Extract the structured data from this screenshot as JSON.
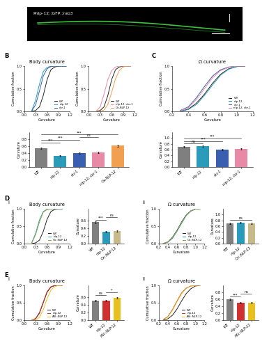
{
  "chart_data": [
    {
      "type": "image",
      "panel": "A",
      "annotation": "Pnlp-12::GFP::rab3"
    },
    {
      "type": "line",
      "panel": "B",
      "title": "Body curvature",
      "xlabel": "Curvature",
      "ylabel": "Cumulative fraction",
      "x": [
        0.2,
        0.3,
        0.4,
        0.5,
        0.6,
        0.7,
        0.8,
        0.9,
        1.0,
        1.1
      ],
      "xlim": [
        0.0,
        1.2
      ],
      "xticks": [
        0.0,
        0.3,
        0.6,
        0.9,
        1.2
      ],
      "ylim": [
        0.0,
        1.0
      ],
      "yticks": [
        0.0,
        0.5,
        1.0
      ],
      "legend": "lower right",
      "series": [
        {
          "name": "WT",
          "color": "#222222",
          "values": [
            0.0,
            0.02,
            0.1,
            0.35,
            0.7,
            0.92,
            0.98,
            1.0,
            1.0,
            1.0
          ]
        },
        {
          "name": "nlp-12",
          "color": "#2a9bb8",
          "values": [
            0.02,
            0.25,
            0.6,
            0.88,
            0.97,
            1.0,
            1.0,
            1.0,
            1.0,
            1.0
          ]
        },
        {
          "name": "ckr-1",
          "color": "#3a5fb0",
          "values": [
            0.01,
            0.15,
            0.45,
            0.78,
            0.94,
            0.99,
            1.0,
            1.0,
            1.0,
            1.0
          ]
        }
      ]
    },
    {
      "type": "line",
      "xlabel": "Curvature",
      "ylabel": "Cumulative fraction",
      "x": [
        0.2,
        0.3,
        0.4,
        0.5,
        0.6,
        0.7,
        0.8,
        0.9,
        1.0,
        1.1
      ],
      "xlim": [
        0.0,
        1.2
      ],
      "xticks": [
        0.0,
        0.3,
        0.6,
        0.9,
        1.2
      ],
      "ylim": [
        0.0,
        1.0
      ],
      "yticks": [
        0.0,
        0.5,
        1.0
      ],
      "legend": "lower right",
      "series": [
        {
          "name": "WT",
          "color": "#222222",
          "values": [
            0.0,
            0.02,
            0.1,
            0.35,
            0.7,
            0.92,
            0.98,
            1.0,
            1.0,
            1.0
          ]
        },
        {
          "name": "nlp-12; ckr-1",
          "color": "#e88aa6",
          "values": [
            0.01,
            0.1,
            0.38,
            0.7,
            0.9,
            0.98,
            1.0,
            1.0,
            1.0,
            1.0
          ]
        },
        {
          "name": "Ox-NLP-12",
          "color": "#f0a050",
          "values": [
            0.0,
            0.0,
            0.03,
            0.15,
            0.42,
            0.72,
            0.9,
            0.98,
            1.0,
            1.0
          ]
        }
      ]
    },
    {
      "type": "bar",
      "ylabel": "Curvature",
      "categories": [
        "WT",
        "nlp-12",
        "ckr-1",
        "nlp-12; ckr-1",
        "Ox-NLP-12"
      ],
      "values": [
        0.55,
        0.33,
        0.4,
        0.43,
        0.62
      ],
      "errors": [
        0.02,
        0.02,
        0.02,
        0.02,
        0.03
      ],
      "colors": [
        "#7f7f7f",
        "#2a9bb8",
        "#3a5fb0",
        "#e88aa6",
        "#f0a050"
      ],
      "ylim": [
        0.0,
        1.0
      ],
      "yticks": [
        0.0,
        0.2,
        0.4,
        0.6,
        0.8
      ],
      "significance": [
        {
          "text": "***",
          "from": "WT",
          "to": "nlp-12"
        },
        {
          "text": "***",
          "from": "WT",
          "to": "ckr-1"
        },
        {
          "text": "ns",
          "from": "ckr-1",
          "to": "nlp-12; ckr-1"
        },
        {
          "text": "***",
          "from": "WT",
          "to": "Ox-NLP-12"
        }
      ]
    },
    {
      "type": "line",
      "panel": "C",
      "title": "Ω curvature",
      "xlabel": "Curvature",
      "ylabel": "Cumulative fraction",
      "x": [
        0.3,
        0.4,
        0.5,
        0.6,
        0.7,
        0.8,
        0.9,
        1.0,
        1.1
      ],
      "xlim": [
        0.2,
        1.2
      ],
      "xticks": [
        0.2,
        0.4,
        0.6,
        0.8,
        1.0,
        1.2
      ],
      "ylim": [
        0.0,
        1.0
      ],
      "yticks": [
        0.0,
        0.5,
        1.0
      ],
      "legend": "lower right",
      "series": [
        {
          "name": "WT",
          "color": "#222222",
          "values": [
            0.0,
            0.05,
            0.18,
            0.38,
            0.62,
            0.82,
            0.94,
            0.99,
            1.0
          ]
        },
        {
          "name": "nlp-12",
          "color": "#2a9bb8",
          "values": [
            0.0,
            0.04,
            0.15,
            0.35,
            0.58,
            0.8,
            0.93,
            0.99,
            1.0
          ]
        },
        {
          "name": "ckr-1",
          "color": "#3a5fb0",
          "values": [
            0.02,
            0.1,
            0.3,
            0.55,
            0.78,
            0.92,
            0.98,
            1.0,
            1.0
          ]
        },
        {
          "name": "nlp-12; ckr-1",
          "color": "#e88aa6",
          "values": [
            0.01,
            0.08,
            0.26,
            0.5,
            0.74,
            0.9,
            0.97,
            1.0,
            1.0
          ]
        }
      ]
    },
    {
      "type": "bar",
      "ylabel": "Curvature",
      "categories": [
        "WT",
        "nlp-12",
        "ckr-1",
        "nlp-12; ckr-1"
      ],
      "values": [
        0.7,
        0.72,
        0.6,
        0.62
      ],
      "errors": [
        0.02,
        0.02,
        0.02,
        0.02
      ],
      "colors": [
        "#7f7f7f",
        "#2a9bb8",
        "#3a5fb0",
        "#e88aa6"
      ],
      "ylim": [
        0.0,
        1.2
      ],
      "yticks": [
        0.0,
        0.2,
        0.4,
        0.6,
        0.8,
        1.0
      ],
      "significance": [
        {
          "text": "ns",
          "from": "WT",
          "to": "nlp-12"
        },
        {
          "text": "***",
          "from": "WT",
          "to": "ckr-1"
        },
        {
          "text": "***",
          "from": "WT",
          "to": "nlp-12; ckr-1"
        }
      ]
    },
    {
      "type": "line",
      "panel": "D",
      "subpanel": "i",
      "title": "Body curvature",
      "xlabel": "Curvature",
      "ylabel": "Cumulative fraction",
      "x": [
        0.2,
        0.3,
        0.4,
        0.5,
        0.6,
        0.7,
        0.8,
        0.9,
        1.0
      ],
      "xlim": [
        0.0,
        1.2
      ],
      "xticks": [
        0.0,
        0.3,
        0.6,
        0.9,
        1.2
      ],
      "ylim": [
        0.0,
        1.0
      ],
      "yticks": [
        0.0,
        0.5,
        1.0
      ],
      "legend": "lower right",
      "series": [
        {
          "name": "WT",
          "color": "#222222",
          "values": [
            0.0,
            0.02,
            0.1,
            0.35,
            0.7,
            0.92,
            0.98,
            1.0,
            1.0
          ]
        },
        {
          "name": "nlp-12",
          "color": "#2a9bb8",
          "values": [
            0.03,
            0.3,
            0.68,
            0.92,
            0.99,
            1.0,
            1.0,
            1.0,
            1.0
          ]
        },
        {
          "name": "Ox::NLP-12",
          "color": "#9aa050",
          "values": [
            0.02,
            0.26,
            0.62,
            0.9,
            0.98,
            1.0,
            1.0,
            1.0,
            1.0
          ]
        }
      ]
    },
    {
      "type": "bar",
      "ylabel": "Curvature",
      "categories": [
        "WT",
        "nlp-12",
        "Ox::NLP-12"
      ],
      "values": [
        0.55,
        0.3,
        0.32
      ],
      "errors": [
        0.02,
        0.02,
        0.02
      ],
      "colors": [
        "#7f7f7f",
        "#2a9bb8",
        "#c8b98a"
      ],
      "ylim": [
        0.0,
        0.9
      ],
      "yticks": [
        0.0,
        0.2,
        0.4,
        0.6
      ],
      "significance": [
        {
          "text": "***",
          "from": "WT",
          "to": "nlp-12"
        },
        {
          "text": "ns",
          "from": "nlp-12",
          "to": "Ox::NLP-12"
        }
      ]
    },
    {
      "type": "line",
      "subpanel": "ii",
      "title": "Ω curvature",
      "xlabel": "Curvature",
      "ylabel": "Cumulative fraction",
      "x": [
        0.3,
        0.4,
        0.5,
        0.6,
        0.7,
        0.8,
        0.9,
        1.0,
        1.1
      ],
      "xlim": [
        0.2,
        1.2
      ],
      "xticks": [
        0.2,
        0.4,
        0.6,
        0.8,
        1.0,
        1.2
      ],
      "ylim": [
        0.0,
        1.0
      ],
      "yticks": [
        0.0,
        0.5,
        1.0
      ],
      "legend": "lower right",
      "series": [
        {
          "name": "WT",
          "color": "#222222",
          "values": [
            0.0,
            0.05,
            0.18,
            0.38,
            0.62,
            0.82,
            0.94,
            0.99,
            1.0
          ]
        },
        {
          "name": "nlp-12",
          "color": "#2a9bb8",
          "values": [
            0.0,
            0.04,
            0.15,
            0.35,
            0.58,
            0.8,
            0.93,
            0.99,
            1.0
          ]
        },
        {
          "name": "Ox::NLP-12",
          "color": "#9aa050",
          "values": [
            0.0,
            0.05,
            0.17,
            0.37,
            0.6,
            0.81,
            0.94,
            0.99,
            1.0
          ]
        }
      ]
    },
    {
      "type": "bar",
      "ylabel": "Curvature",
      "categories": [
        "WT",
        "nlp-12",
        "Ox::NLP-12"
      ],
      "values": [
        0.7,
        0.72,
        0.7
      ],
      "errors": [
        0.02,
        0.02,
        0.02
      ],
      "colors": [
        "#7f7f7f",
        "#2a9bb8",
        "#c8b98a"
      ],
      "ylim": [
        0.0,
        1.2
      ],
      "yticks": [
        0.0,
        0.2,
        0.4,
        0.6,
        0.8,
        1.0
      ],
      "significance": [
        {
          "text": "ns",
          "from": "WT",
          "to": "Ox::NLP-12"
        }
      ]
    },
    {
      "type": "line",
      "panel": "E",
      "subpanel": "i",
      "title": "Body curvature",
      "xlabel": "Curvature",
      "ylabel": "Cumulative fraction",
      "x": [
        0.2,
        0.3,
        0.4,
        0.5,
        0.6,
        0.7,
        0.8,
        0.9,
        1.0
      ],
      "xlim": [
        0.0,
        1.2
      ],
      "xticks": [
        0.0,
        0.3,
        0.6,
        0.9,
        1.2
      ],
      "ylim": [
        0.0,
        1.0
      ],
      "yticks": [
        0.0,
        0.5,
        1.0
      ],
      "legend": "lower right",
      "series": [
        {
          "name": "WT",
          "color": "#222222",
          "values": [
            0.0,
            0.04,
            0.2,
            0.5,
            0.8,
            0.95,
            0.99,
            1.0,
            1.0
          ]
        },
        {
          "name": "nlp-12",
          "color": "#d03030",
          "values": [
            0.0,
            0.05,
            0.22,
            0.52,
            0.82,
            0.96,
            1.0,
            1.0,
            1.0
          ]
        },
        {
          "name": "ASI::NLP-12",
          "color": "#e8c020",
          "values": [
            0.0,
            0.01,
            0.08,
            0.3,
            0.62,
            0.86,
            0.96,
            1.0,
            1.0
          ]
        }
      ]
    },
    {
      "type": "bar",
      "ylabel": "Curvature",
      "categories": [
        "WT",
        "nlp-12",
        "ASI::NLP-12"
      ],
      "values": [
        0.5,
        0.5,
        0.58
      ],
      "errors": [
        0.02,
        0.02,
        0.02
      ],
      "colors": [
        "#7f7f7f",
        "#d03030",
        "#e8c020"
      ],
      "ylim": [
        0.0,
        0.9
      ],
      "yticks": [
        0.0,
        0.2,
        0.4,
        0.6
      ],
      "significance": [
        {
          "text": "ns",
          "from": "WT",
          "to": "nlp-12"
        },
        {
          "text": "*",
          "from": "nlp-12",
          "to": "ASI::NLP-12"
        }
      ]
    },
    {
      "type": "line",
      "subpanel": "ii",
      "title": "Ω curvature",
      "xlabel": "Curvature",
      "ylabel": "Cumulative fraction",
      "x": [
        0.3,
        0.4,
        0.5,
        0.6,
        0.7,
        0.8,
        0.9,
        1.0,
        1.1
      ],
      "xlim": [
        0.2,
        1.2
      ],
      "xticks": [
        0.2,
        0.4,
        0.6,
        0.8,
        1.0,
        1.2
      ],
      "ylim": [
        0.0,
        1.0
      ],
      "yticks": [
        0.0,
        0.5,
        1.0
      ],
      "legend": "lower right",
      "series": [
        {
          "name": "WT",
          "color": "#222222",
          "values": [
            0.0,
            0.04,
            0.14,
            0.32,
            0.55,
            0.76,
            0.9,
            0.98,
            1.0
          ]
        },
        {
          "name": "nlp-12",
          "color": "#d03030",
          "values": [
            0.02,
            0.1,
            0.3,
            0.55,
            0.78,
            0.92,
            0.98,
            1.0,
            1.0
          ]
        },
        {
          "name": "ASI::NLP-12",
          "color": "#e8c020",
          "values": [
            0.02,
            0.09,
            0.28,
            0.53,
            0.76,
            0.91,
            0.98,
            1.0,
            1.0
          ]
        }
      ]
    },
    {
      "type": "bar",
      "ylabel": "Curvature",
      "categories": [
        "WT",
        "nlp-12",
        "ASI::NLP-12"
      ],
      "values": [
        0.6,
        0.5,
        0.5
      ],
      "errors": [
        0.02,
        0.02,
        0.02
      ],
      "colors": [
        "#7f7f7f",
        "#d03030",
        "#e8c020"
      ],
      "ylim": [
        0.0,
        1.0
      ],
      "yticks": [
        0.0,
        0.2,
        0.4,
        0.6,
        0.8
      ],
      "significance": [
        {
          "text": "***",
          "from": "WT",
          "to": "nlp-12"
        },
        {
          "text": "ns",
          "from": "nlp-12",
          "to": "ASI::NLP-12"
        }
      ]
    }
  ]
}
